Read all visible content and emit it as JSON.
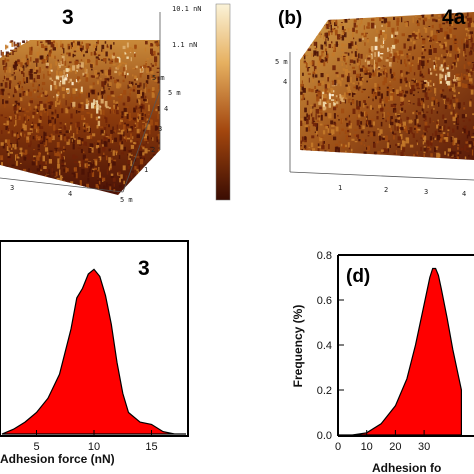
{
  "colors": {
    "fill": "#ff0000",
    "afm_dark": "#4a1206",
    "afm_mid": "#a04a10",
    "afm_light": "#f0d8a0"
  },
  "afm_left": {
    "label": "3",
    "colorbar": [
      "10.1 nN",
      "1.1 nN"
    ],
    "depth_ticks": [
      "5 m",
      "4",
      "3",
      "2",
      "1"
    ],
    "base_ticks": [
      "3",
      "4",
      "5 m"
    ],
    "axis_label": "5 m"
  },
  "afm_right": {
    "label": "(b)",
    "sample": "4a",
    "side_ticks": [
      "5 m",
      "4"
    ],
    "base_ticks": [
      "1",
      "2",
      "3",
      "4"
    ]
  },
  "chart_data": [
    {
      "type": "area",
      "label": "3",
      "xlabel": "Adhesion force (nN)",
      "ylabel": "",
      "xlim": [
        2,
        18
      ],
      "ylim": [
        0,
        0.8
      ],
      "xticks": [
        5,
        10,
        15
      ],
      "x": [
        2,
        3,
        4,
        5,
        6,
        7,
        8,
        8.5,
        9,
        9.5,
        10,
        10.5,
        11,
        11.5,
        12,
        12.5,
        13,
        14,
        15,
        16,
        17,
        18
      ],
      "y": [
        0.0,
        0.02,
        0.05,
        0.09,
        0.15,
        0.25,
        0.44,
        0.57,
        0.61,
        0.67,
        0.69,
        0.66,
        0.58,
        0.46,
        0.3,
        0.17,
        0.09,
        0.05,
        0.04,
        0.01,
        0.0,
        0.0
      ]
    },
    {
      "type": "area",
      "label": "(d)",
      "xlabel": "Adhesion fo",
      "ylabel": "Frequency (%)",
      "xlim": [
        0,
        60
      ],
      "ylim": [
        0,
        0.8
      ],
      "xticks": [
        "0",
        "10",
        "20",
        "30"
      ],
      "yticks": [
        "0.0",
        "0.2",
        "0.4",
        "0.6",
        "0.8"
      ],
      "x": [
        0,
        5,
        10,
        15,
        20,
        24,
        27,
        30,
        32,
        33,
        34,
        35,
        36,
        38,
        40,
        43
      ],
      "y": [
        0.0,
        0.0,
        0.01,
        0.05,
        0.13,
        0.25,
        0.4,
        0.58,
        0.7,
        0.74,
        0.74,
        0.71,
        0.65,
        0.52,
        0.38,
        0.2
      ]
    }
  ]
}
